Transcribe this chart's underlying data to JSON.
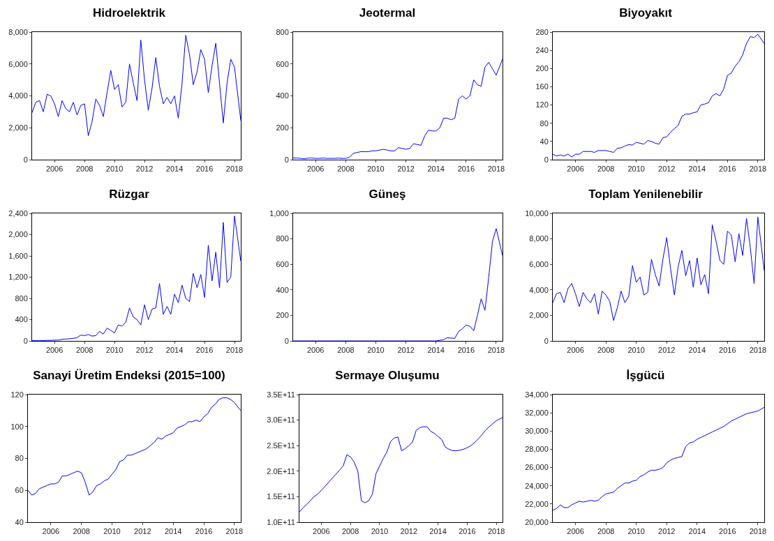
{
  "chart_data": [
    {
      "type": "line",
      "title": "Hidroelektrik",
      "color": "#0000ff",
      "xlim": [
        "2005-01",
        "2018-12"
      ],
      "xticks": [
        {
          "value": "2006-07",
          "label": "2006"
        },
        {
          "value": "2008-07",
          "label": "2008"
        },
        {
          "value": "2010-07",
          "label": "2010"
        },
        {
          "value": "2012-07",
          "label": "2012"
        },
        {
          "value": "2014-07",
          "label": "2014"
        },
        {
          "value": "2016-07",
          "label": "2016"
        },
        {
          "value": "2018-07",
          "label": "2018"
        }
      ],
      "ylim": [
        0,
        8000
      ],
      "yticks": [
        0,
        {
          "value": 2000,
          "label": "2,000"
        },
        {
          "value": 4000,
          "label": "4,000"
        },
        {
          "value": 6000,
          "label": "6,000"
        },
        {
          "value": 8000,
          "label": "8,000"
        }
      ],
      "x": [
        "2005-01",
        "2005-04",
        "2005-07",
        "2005-10",
        "2006-01",
        "2006-04",
        "2006-07",
        "2006-10",
        "2007-01",
        "2007-04",
        "2007-07",
        "2007-10",
        "2008-01",
        "2008-04",
        "2008-07",
        "2008-10",
        "2009-01",
        "2009-04",
        "2009-07",
        "2009-10",
        "2010-01",
        "2010-04",
        "2010-07",
        "2010-10",
        "2011-01",
        "2011-04",
        "2011-07",
        "2011-10",
        "2012-01",
        "2012-04",
        "2012-07",
        "2012-10",
        "2013-01",
        "2013-04",
        "2013-07",
        "2013-10",
        "2014-01",
        "2014-04",
        "2014-07",
        "2014-10",
        "2015-01",
        "2015-04",
        "2015-07",
        "2015-10",
        "2016-01",
        "2016-04",
        "2016-07",
        "2016-10",
        "2017-01",
        "2017-04",
        "2017-07",
        "2017-10",
        "2018-01",
        "2018-04",
        "2018-07",
        "2018-12"
      ],
      "values": [
        2950,
        3600,
        3700,
        3000,
        4100,
        4000,
        3500,
        2700,
        3700,
        3200,
        3000,
        3600,
        2800,
        3400,
        3500,
        1500,
        2400,
        3800,
        3400,
        2700,
        4200,
        5600,
        4400,
        4700,
        3300,
        3600,
        6000,
        4800,
        3700,
        7500,
        5000,
        3100,
        4500,
        6400,
        4600,
        3500,
        3900,
        3500,
        4000,
        2600,
        4800,
        7800,
        6600,
        4700,
        5500,
        6900,
        6300,
        4200,
        5900,
        7300,
        4800,
        2300,
        4800,
        6300,
        5800,
        2450
      ]
    },
    {
      "type": "line",
      "title": "Jeotermal",
      "color": "#0000ff",
      "xlim": [
        "2005-01",
        "2018-12"
      ],
      "xticks": [
        {
          "value": "2006-07",
          "label": "2006"
        },
        {
          "value": "2008-07",
          "label": "2008"
        },
        {
          "value": "2010-07",
          "label": "2010"
        },
        {
          "value": "2012-07",
          "label": "2012"
        },
        {
          "value": "2014-07",
          "label": "2014"
        },
        {
          "value": "2016-07",
          "label": "2016"
        },
        {
          "value": "2018-07",
          "label": "2018"
        }
      ],
      "ylim": [
        0,
        800
      ],
      "yticks": [
        0,
        200,
        400,
        600,
        800
      ],
      "x": [
        "2005-01",
        "2005-04",
        "2005-07",
        "2005-10",
        "2006-01",
        "2006-04",
        "2006-07",
        "2006-10",
        "2007-01",
        "2007-04",
        "2007-07",
        "2007-10",
        "2008-01",
        "2008-04",
        "2008-07",
        "2008-10",
        "2009-01",
        "2009-04",
        "2009-07",
        "2009-10",
        "2010-01",
        "2010-04",
        "2010-07",
        "2010-10",
        "2011-01",
        "2011-04",
        "2011-07",
        "2011-10",
        "2012-01",
        "2012-04",
        "2012-07",
        "2012-10",
        "2013-01",
        "2013-04",
        "2013-07",
        "2013-10",
        "2014-01",
        "2014-04",
        "2014-07",
        "2014-10",
        "2015-01",
        "2015-04",
        "2015-07",
        "2015-10",
        "2016-01",
        "2016-04",
        "2016-07",
        "2016-10",
        "2017-01",
        "2017-04",
        "2017-07",
        "2017-10",
        "2018-01",
        "2018-04",
        "2018-07",
        "2018-12"
      ],
      "values": [
        10,
        10,
        8,
        5,
        10,
        10,
        8,
        8,
        10,
        8,
        8,
        8,
        10,
        8,
        8,
        15,
        40,
        45,
        50,
        50,
        50,
        55,
        55,
        60,
        65,
        60,
        55,
        55,
        75,
        70,
        65,
        70,
        100,
        95,
        90,
        150,
        185,
        180,
        180,
        200,
        260,
        260,
        250,
        260,
        380,
        400,
        380,
        400,
        500,
        470,
        460,
        580,
        610,
        570,
        530,
        630
      ]
    },
    {
      "type": "line",
      "title": "Biyoyakıt",
      "color": "#0000ff",
      "xlim": [
        "2005-01",
        "2018-12"
      ],
      "xticks": [
        {
          "value": "2006-07",
          "label": "2006"
        },
        {
          "value": "2008-07",
          "label": "2008"
        },
        {
          "value": "2010-07",
          "label": "2010"
        },
        {
          "value": "2012-07",
          "label": "2012"
        },
        {
          "value": "2014-07",
          "label": "2014"
        },
        {
          "value": "2016-07",
          "label": "2016"
        },
        {
          "value": "2018-07",
          "label": "2018"
        }
      ],
      "ylim": [
        0,
        280
      ],
      "yticks": [
        0,
        40,
        80,
        120,
        160,
        200,
        240,
        280
      ],
      "x": [
        "2005-01",
        "2005-04",
        "2005-07",
        "2005-10",
        "2006-01",
        "2006-04",
        "2006-07",
        "2006-10",
        "2007-01",
        "2007-04",
        "2007-07",
        "2007-10",
        "2008-01",
        "2008-04",
        "2008-07",
        "2008-10",
        "2009-01",
        "2009-04",
        "2009-07",
        "2009-10",
        "2010-01",
        "2010-04",
        "2010-07",
        "2010-10",
        "2011-01",
        "2011-04",
        "2011-07",
        "2011-10",
        "2012-01",
        "2012-04",
        "2012-07",
        "2012-10",
        "2013-01",
        "2013-04",
        "2013-07",
        "2013-10",
        "2014-01",
        "2014-04",
        "2014-07",
        "2014-10",
        "2015-01",
        "2015-04",
        "2015-07",
        "2015-10",
        "2016-01",
        "2016-04",
        "2016-07",
        "2016-10",
        "2017-01",
        "2017-04",
        "2017-07",
        "2017-10",
        "2018-01",
        "2018-04",
        "2018-07",
        "2018-12"
      ],
      "values": [
        12,
        8,
        10,
        8,
        12,
        6,
        12,
        12,
        18,
        18,
        18,
        16,
        20,
        20,
        20,
        18,
        16,
        25,
        26,
        30,
        33,
        32,
        38,
        36,
        34,
        42,
        40,
        36,
        34,
        48,
        50,
        60,
        68,
        75,
        95,
        100,
        100,
        103,
        105,
        120,
        122,
        125,
        140,
        145,
        140,
        155,
        185,
        190,
        205,
        215,
        230,
        255,
        270,
        268,
        275,
        255
      ]
    },
    {
      "type": "line",
      "title": "Rüzgar",
      "color": "#0000ff",
      "xlim": [
        "2005-01",
        "2018-12"
      ],
      "xticks": [
        {
          "value": "2006-07",
          "label": "2006"
        },
        {
          "value": "2008-07",
          "label": "2008"
        },
        {
          "value": "2010-07",
          "label": "2010"
        },
        {
          "value": "2012-07",
          "label": "2012"
        },
        {
          "value": "2014-07",
          "label": "2014"
        },
        {
          "value": "2016-07",
          "label": "2016"
        },
        {
          "value": "2018-07",
          "label": "2018"
        }
      ],
      "ylim": [
        0,
        2400
      ],
      "yticks": [
        0,
        400,
        800,
        {
          "value": 1200,
          "label": "1,200"
        },
        {
          "value": 1600,
          "label": "1,600"
        },
        {
          "value": 2000,
          "label": "2,000"
        },
        {
          "value": 2400,
          "label": "2,400"
        }
      ],
      "x": [
        "2005-01",
        "2005-04",
        "2005-07",
        "2005-10",
        "2006-01",
        "2006-04",
        "2006-07",
        "2006-10",
        "2007-01",
        "2007-04",
        "2007-07",
        "2007-10",
        "2008-01",
        "2008-04",
        "2008-07",
        "2008-10",
        "2009-01",
        "2009-04",
        "2009-07",
        "2009-10",
        "2010-01",
        "2010-04",
        "2010-07",
        "2010-10",
        "2011-01",
        "2011-04",
        "2011-07",
        "2011-10",
        "2012-01",
        "2012-04",
        "2012-07",
        "2012-10",
        "2013-01",
        "2013-04",
        "2013-07",
        "2013-10",
        "2014-01",
        "2014-04",
        "2014-07",
        "2014-10",
        "2015-01",
        "2015-04",
        "2015-07",
        "2015-10",
        "2016-01",
        "2016-04",
        "2016-07",
        "2016-10",
        "2017-01",
        "2017-04",
        "2017-07",
        "2017-10",
        "2018-01",
        "2018-04",
        "2018-07",
        "2018-12"
      ],
      "values": [
        5,
        5,
        5,
        5,
        10,
        10,
        15,
        15,
        30,
        35,
        40,
        50,
        60,
        110,
        100,
        120,
        90,
        100,
        180,
        130,
        240,
        200,
        150,
        300,
        280,
        350,
        620,
        450,
        400,
        300,
        680,
        400,
        600,
        620,
        1080,
        500,
        650,
        500,
        880,
        720,
        1050,
        800,
        740,
        1270,
        1000,
        1250,
        820,
        1800,
        1130,
        1670,
        1000,
        2230,
        1100,
        1200,
        2350,
        1500
      ]
    },
    {
      "type": "line",
      "title": "Güneş",
      "color": "#0000ff",
      "xlim": [
        "2005-01",
        "2018-12"
      ],
      "xticks": [
        {
          "value": "2006-07",
          "label": "2006"
        },
        {
          "value": "2008-07",
          "label": "2008"
        },
        {
          "value": "2010-07",
          "label": "2010"
        },
        {
          "value": "2012-07",
          "label": "2012"
        },
        {
          "value": "2014-07",
          "label": "2014"
        },
        {
          "value": "2016-07",
          "label": "2016"
        },
        {
          "value": "2018-07",
          "label": "2018"
        }
      ],
      "ylim": [
        0,
        1000
      ],
      "yticks": [
        0,
        200,
        400,
        600,
        800,
        {
          "value": 1000,
          "label": "1,000"
        }
      ],
      "x": [
        "2005-01",
        "2005-04",
        "2005-07",
        "2005-10",
        "2006-01",
        "2006-04",
        "2006-07",
        "2006-10",
        "2007-01",
        "2007-04",
        "2007-07",
        "2007-10",
        "2008-01",
        "2008-04",
        "2008-07",
        "2008-10",
        "2009-01",
        "2009-04",
        "2009-07",
        "2009-10",
        "2010-01",
        "2010-04",
        "2010-07",
        "2010-10",
        "2011-01",
        "2011-04",
        "2011-07",
        "2011-10",
        "2012-01",
        "2012-04",
        "2012-07",
        "2012-10",
        "2013-01",
        "2013-04",
        "2013-07",
        "2013-10",
        "2014-01",
        "2014-04",
        "2014-07",
        "2014-10",
        "2015-01",
        "2015-04",
        "2015-07",
        "2015-10",
        "2016-01",
        "2016-04",
        "2016-07",
        "2016-10",
        "2017-01",
        "2017-04",
        "2017-07",
        "2017-10",
        "2018-01",
        "2018-04",
        "2018-07",
        "2018-12"
      ],
      "values": [
        0,
        0,
        0,
        0,
        0,
        0,
        0,
        0,
        0,
        0,
        0,
        0,
        0,
        0,
        0,
        0,
        0,
        0,
        0,
        0,
        0,
        0,
        0,
        0,
        0,
        0,
        0,
        0,
        0,
        0,
        0,
        0,
        0,
        0,
        0,
        0,
        0,
        0,
        0,
        5,
        10,
        25,
        22,
        20,
        75,
        95,
        125,
        115,
        80,
        200,
        330,
        240,
        500,
        780,
        880,
        670
      ]
    },
    {
      "type": "line",
      "title": "Toplam Yenilenebilir",
      "color": "#0000ff",
      "xlim": [
        "2005-01",
        "2018-12"
      ],
      "xticks": [
        {
          "value": "2006-07",
          "label": "2006"
        },
        {
          "value": "2008-07",
          "label": "2008"
        },
        {
          "value": "2010-07",
          "label": "2010"
        },
        {
          "value": "2012-07",
          "label": "2012"
        },
        {
          "value": "2014-07",
          "label": "2014"
        },
        {
          "value": "2016-07",
          "label": "2016"
        },
        {
          "value": "2018-07",
          "label": "2018"
        }
      ],
      "ylim": [
        0,
        10000
      ],
      "yticks": [
        0,
        {
          "value": 2000,
          "label": "2,000"
        },
        {
          "value": 4000,
          "label": "4,000"
        },
        {
          "value": 6000,
          "label": "6,000"
        },
        {
          "value": 8000,
          "label": "8,000"
        },
        {
          "value": 10000,
          "label": "10,000"
        }
      ],
      "x": [
        "2005-01",
        "2005-04",
        "2005-07",
        "2005-10",
        "2006-01",
        "2006-04",
        "2006-07",
        "2006-10",
        "2007-01",
        "2007-04",
        "2007-07",
        "2007-10",
        "2008-01",
        "2008-04",
        "2008-07",
        "2008-10",
        "2009-01",
        "2009-04",
        "2009-07",
        "2009-10",
        "2010-01",
        "2010-04",
        "2010-07",
        "2010-10",
        "2011-01",
        "2011-04",
        "2011-07",
        "2011-10",
        "2012-01",
        "2012-04",
        "2012-07",
        "2012-10",
        "2013-01",
        "2013-04",
        "2013-07",
        "2013-10",
        "2014-01",
        "2014-04",
        "2014-07",
        "2014-10",
        "2015-01",
        "2015-04",
        "2015-07",
        "2015-10",
        "2016-01",
        "2016-04",
        "2016-07",
        "2016-10",
        "2017-01",
        "2017-04",
        "2017-07",
        "2017-10",
        "2018-01",
        "2018-04",
        "2018-07",
        "2018-12"
      ],
      "values": [
        3000,
        3700,
        3800,
        3000,
        4100,
        4500,
        3700,
        2700,
        3800,
        3300,
        3000,
        3700,
        2100,
        3900,
        3600,
        3100,
        1600,
        2600,
        3900,
        3000,
        3500,
        5900,
        4600,
        5000,
        3600,
        3800,
        6400,
        5200,
        4300,
        6400,
        8100,
        5700,
        3600,
        5800,
        7100,
        5100,
        6300,
        4200,
        6500,
        4400,
        5200,
        3700,
        9100,
        7800,
        6300,
        6000,
        8600,
        8300,
        6200,
        8400,
        6700,
        9600,
        7300,
        4500,
        9700,
        5500
      ]
    },
    {
      "type": "line",
      "title": "Sanayi Üretim Endeksi (2015=100)",
      "color": "#0000ff",
      "xlim": [
        "2005-01",
        "2018-12"
      ],
      "xticks": [
        {
          "value": "2006-07",
          "label": "2006"
        },
        {
          "value": "2008-07",
          "label": "2008"
        },
        {
          "value": "2010-07",
          "label": "2010"
        },
        {
          "value": "2012-07",
          "label": "2012"
        },
        {
          "value": "2014-07",
          "label": "2014"
        },
        {
          "value": "2016-07",
          "label": "2016"
        },
        {
          "value": "2018-07",
          "label": "2018"
        }
      ],
      "ylim": [
        40,
        120
      ],
      "yticks": [
        40,
        60,
        80,
        100,
        120
      ],
      "x": [
        "2005-01",
        "2005-04",
        "2005-07",
        "2005-10",
        "2006-01",
        "2006-04",
        "2006-07",
        "2006-10",
        "2007-01",
        "2007-04",
        "2007-07",
        "2007-10",
        "2008-01",
        "2008-04",
        "2008-07",
        "2008-10",
        "2009-01",
        "2009-04",
        "2009-07",
        "2009-10",
        "2010-01",
        "2010-04",
        "2010-07",
        "2010-10",
        "2011-01",
        "2011-04",
        "2011-07",
        "2011-10",
        "2012-01",
        "2012-04",
        "2012-07",
        "2012-10",
        "2013-01",
        "2013-04",
        "2013-07",
        "2013-10",
        "2014-01",
        "2014-04",
        "2014-07",
        "2014-10",
        "2015-01",
        "2015-04",
        "2015-07",
        "2015-10",
        "2016-01",
        "2016-04",
        "2016-07",
        "2016-10",
        "2017-01",
        "2017-04",
        "2017-07",
        "2017-10",
        "2018-01",
        "2018-04",
        "2018-07",
        "2018-12"
      ],
      "values": [
        60,
        57,
        58,
        61,
        62,
        63,
        64,
        64,
        65,
        69,
        69,
        70,
        71,
        72,
        71,
        65,
        57,
        59,
        63,
        64,
        66,
        67,
        70,
        73,
        78,
        79,
        82,
        82,
        83,
        84,
        85,
        86,
        88,
        90,
        93,
        92,
        94,
        95,
        96,
        99,
        100,
        101,
        103,
        103,
        104,
        103,
        106,
        108,
        112,
        114,
        117,
        118,
        118,
        117,
        115,
        110
      ]
    },
    {
      "type": "line",
      "title": "Sermaye Oluşumu",
      "color": "#0000ff",
      "xlim": [
        "2005-01",
        "2018-12"
      ],
      "xticks": [
        {
          "value": "2006-07",
          "label": "2006"
        },
        {
          "value": "2008-07",
          "label": "2008"
        },
        {
          "value": "2010-07",
          "label": "2010"
        },
        {
          "value": "2012-07",
          "label": "2012"
        },
        {
          "value": "2014-07",
          "label": "2014"
        },
        {
          "value": "2016-07",
          "label": "2016"
        },
        {
          "value": "2018-07",
          "label": "2018"
        }
      ],
      "ylim": [
        100000000000.0,
        350000000000.0
      ],
      "yticks": [
        {
          "value": 100000000000.0,
          "label": "1.0E+11"
        },
        {
          "value": 150000000000.0,
          "label": "1.5E+11"
        },
        {
          "value": 200000000000.0,
          "label": "2.0E+11"
        },
        {
          "value": 250000000000.0,
          "label": "2.5E+11"
        },
        {
          "value": 300000000000.0,
          "label": "3.0E+11"
        },
        {
          "value": 350000000000.0,
          "label": "3.5E+11"
        }
      ],
      "x": [
        "2005-01",
        "2005-04",
        "2005-07",
        "2005-10",
        "2006-01",
        "2006-04",
        "2006-07",
        "2006-10",
        "2007-01",
        "2007-04",
        "2007-07",
        "2007-10",
        "2008-01",
        "2008-04",
        "2008-07",
        "2008-10",
        "2009-01",
        "2009-04",
        "2009-07",
        "2009-10",
        "2010-01",
        "2010-04",
        "2010-07",
        "2010-10",
        "2011-01",
        "2011-04",
        "2011-07",
        "2011-10",
        "2012-01",
        "2012-04",
        "2012-07",
        "2012-10",
        "2013-01",
        "2013-04",
        "2013-07",
        "2013-10",
        "2014-01",
        "2014-04",
        "2014-07",
        "2014-10",
        "2015-01",
        "2015-04",
        "2015-07",
        "2015-10",
        "2016-01",
        "2016-04",
        "2016-07",
        "2016-10",
        "2017-01",
        "2017-04",
        "2017-07",
        "2017-10",
        "2018-01",
        "2018-04",
        "2018-07",
        "2018-12"
      ],
      "values": [
        120000000000.0,
        128000000000.0,
        135000000000.0,
        142000000000.0,
        150000000000.0,
        155000000000.0,
        162000000000.0,
        170000000000.0,
        178000000000.0,
        186000000000.0,
        194000000000.0,
        202000000000.0,
        210000000000.0,
        232000000000.0,
        228000000000.0,
        218000000000.0,
        200000000000.0,
        142000000000.0,
        138000000000.0,
        142000000000.0,
        155000000000.0,
        195000000000.0,
        210000000000.0,
        225000000000.0,
        238000000000.0,
        258000000000.0,
        265000000000.0,
        267000000000.0,
        240000000000.0,
        244000000000.0,
        250000000000.0,
        257000000000.0,
        280000000000.0,
        285000000000.0,
        287000000000.0,
        287000000000.0,
        278000000000.0,
        274000000000.0,
        268000000000.0,
        262000000000.0,
        247000000000.0,
        243000000000.0,
        240000000000.0,
        240000000000.0,
        241000000000.0,
        243000000000.0,
        246000000000.0,
        250000000000.0,
        256000000000.0,
        263000000000.0,
        271000000000.0,
        280000000000.0,
        287000000000.0,
        293000000000.0,
        299000000000.0,
        305000000000.0
      ]
    },
    {
      "type": "line",
      "title": "İşgücü",
      "color": "#0000ff",
      "xlim": [
        "2005-01",
        "2018-12"
      ],
      "xticks": [
        {
          "value": "2006-07",
          "label": "2006"
        },
        {
          "value": "2008-07",
          "label": "2008"
        },
        {
          "value": "2010-07",
          "label": "2010"
        },
        {
          "value": "2012-07",
          "label": "2012"
        },
        {
          "value": "2014-07",
          "label": "2014"
        },
        {
          "value": "2016-07",
          "label": "2016"
        },
        {
          "value": "2018-07",
          "label": "2018"
        }
      ],
      "ylim": [
        20000,
        34000
      ],
      "yticks": [
        {
          "value": 20000,
          "label": "20,000"
        },
        {
          "value": 22000,
          "label": "22,000"
        },
        {
          "value": 24000,
          "label": "24,000"
        },
        {
          "value": 26000,
          "label": "26,000"
        },
        {
          "value": 28000,
          "label": "28,000"
        },
        {
          "value": 30000,
          "label": "30,000"
        },
        {
          "value": 32000,
          "label": "32,000"
        },
        {
          "value": 34000,
          "label": "34,000"
        }
      ],
      "x": [
        "2005-01",
        "2005-04",
        "2005-07",
        "2005-10",
        "2006-01",
        "2006-04",
        "2006-07",
        "2006-10",
        "2007-01",
        "2007-04",
        "2007-07",
        "2007-10",
        "2008-01",
        "2008-04",
        "2008-07",
        "2008-10",
        "2009-01",
        "2009-04",
        "2009-07",
        "2009-10",
        "2010-01",
        "2010-04",
        "2010-07",
        "2010-10",
        "2011-01",
        "2011-04",
        "2011-07",
        "2011-10",
        "2012-01",
        "2012-04",
        "2012-07",
        "2012-10",
        "2013-01",
        "2013-04",
        "2013-07",
        "2013-10",
        "2014-01",
        "2014-04",
        "2014-07",
        "2014-10",
        "2015-01",
        "2015-04",
        "2015-07",
        "2015-10",
        "2016-01",
        "2016-04",
        "2016-07",
        "2016-10",
        "2017-01",
        "2017-04",
        "2017-07",
        "2017-10",
        "2018-01",
        "2018-04",
        "2018-07",
        "2018-12"
      ],
      "values": [
        21300,
        21500,
        21900,
        21600,
        21600,
        21900,
        22100,
        22300,
        22200,
        22300,
        22400,
        22300,
        22400,
        22800,
        23100,
        23200,
        23300,
        23700,
        24000,
        24300,
        24300,
        24500,
        24600,
        25000,
        25200,
        25500,
        25700,
        25700,
        25800,
        26000,
        26500,
        26800,
        27000,
        27100,
        27200,
        28300,
        28700,
        28800,
        29100,
        29300,
        29500,
        29700,
        29900,
        30100,
        30300,
        30500,
        30800,
        31100,
        31300,
        31500,
        31700,
        31900,
        32000,
        32100,
        32200,
        32600
      ]
    }
  ]
}
